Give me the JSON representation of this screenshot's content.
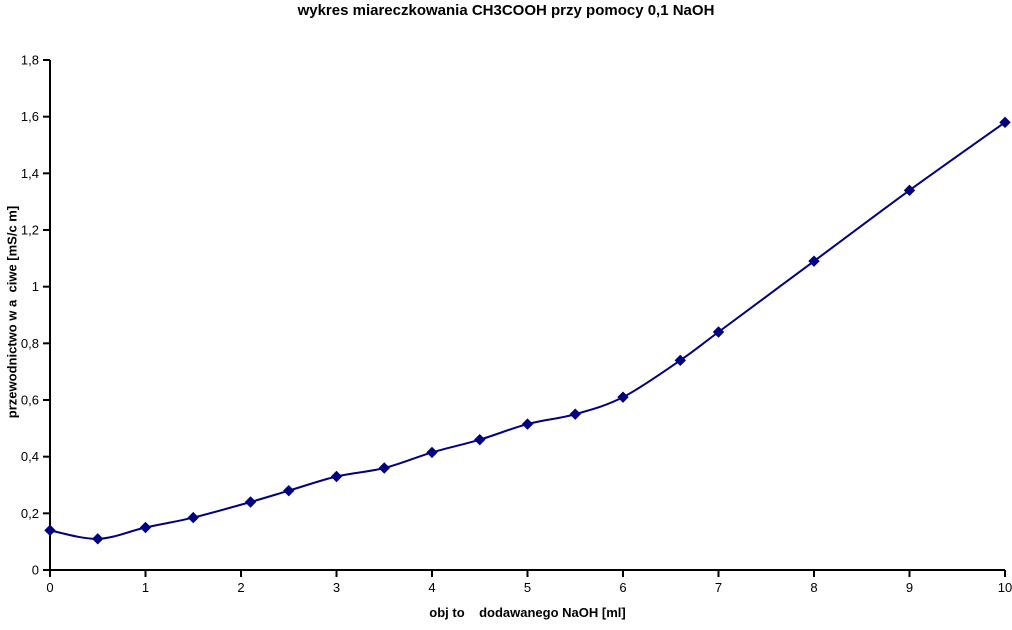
{
  "chart": {
    "title": "wykres miareczkowania CH3COOH przy pomocy 0,1 NaOH",
    "x_axis_title": "obj to    dodawanego NaOH [ml]",
    "y_axis_title": "przewodnictwo w a  ciwe [mS/c m]"
  },
  "chart_data": {
    "type": "line",
    "title": "wykres miareczkowania CH3COOH przy pomocy 0,1 NaOH",
    "xlabel": "obj to    dodawanego NaOH [ml]",
    "ylabel": "przewodnictwo w a  ciwe [mS/c m]",
    "x": [
      0,
      0.5,
      1,
      1.5,
      2.1,
      2.5,
      3,
      3.5,
      4,
      4.5,
      5,
      5.5,
      6,
      6.6,
      7,
      8,
      9,
      10
    ],
    "y": [
      0.14,
      0.11,
      0.15,
      0.185,
      0.24,
      0.28,
      0.33,
      0.36,
      0.415,
      0.46,
      0.515,
      0.55,
      0.61,
      0.74,
      0.84,
      1.09,
      1.34,
      1.58
    ],
    "xlim": [
      0,
      10
    ],
    "ylim": [
      0,
      1.8
    ],
    "x_ticks": [
      {
        "value": 0,
        "label": "0"
      },
      {
        "value": 1,
        "label": "1"
      },
      {
        "value": 2,
        "label": "2"
      },
      {
        "value": 3,
        "label": "3"
      },
      {
        "value": 4,
        "label": "4"
      },
      {
        "value": 5,
        "label": "5"
      },
      {
        "value": 6,
        "label": "6"
      },
      {
        "value": 7,
        "label": "7"
      },
      {
        "value": 8,
        "label": "8"
      },
      {
        "value": 9,
        "label": "9"
      },
      {
        "value": 10,
        "label": "10"
      }
    ],
    "y_ticks": [
      {
        "value": 0,
        "label": "0"
      },
      {
        "value": 0.2,
        "label": "0,2"
      },
      {
        "value": 0.4,
        "label": "0,4"
      },
      {
        "value": 0.6,
        "label": "0,6"
      },
      {
        "value": 0.8,
        "label": "0,8"
      },
      {
        "value": 1,
        "label": "1"
      },
      {
        "value": 1.2,
        "label": "1,2"
      },
      {
        "value": 1.4,
        "label": "1,4"
      },
      {
        "value": 1.6,
        "label": "1,6"
      },
      {
        "value": 1.8,
        "label": "1,8"
      }
    ],
    "grid": false,
    "legend": null,
    "series_name": "przewodnictwo",
    "line_color": "#000080",
    "marker": "diamond",
    "marker_color": "#000080",
    "axis_color": "#000000",
    "background_color": "#ffffff"
  }
}
